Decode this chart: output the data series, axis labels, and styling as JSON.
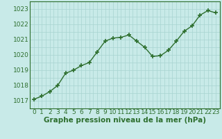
{
  "x": [
    0,
    1,
    2,
    3,
    4,
    5,
    6,
    7,
    8,
    9,
    10,
    11,
    12,
    13,
    14,
    15,
    16,
    17,
    18,
    19,
    20,
    21,
    22,
    23
  ],
  "y": [
    1017.1,
    1017.3,
    1017.6,
    1018.0,
    1018.8,
    1019.0,
    1019.3,
    1019.5,
    1020.2,
    1020.9,
    1021.1,
    1021.15,
    1021.3,
    1020.9,
    1020.5,
    1019.9,
    1019.95,
    1020.3,
    1020.9,
    1021.55,
    1021.9,
    1022.6,
    1022.9,
    1022.75
  ],
  "line_color": "#2d6e2d",
  "marker": "+",
  "marker_size": 5,
  "marker_lw": 1.2,
  "bg_color": "#c8eae8",
  "grid_color": "#a8d4d0",
  "xlabel": "Graphe pression niveau de la mer (hPa)",
  "xlabel_fontsize": 7.5,
  "xtick_labels": [
    "0",
    "1",
    "2",
    "3",
    "4",
    "5",
    "6",
    "7",
    "8",
    "9",
    "10",
    "11",
    "12",
    "13",
    "14",
    "15",
    "16",
    "17",
    "18",
    "19",
    "20",
    "21",
    "22",
    "23"
  ],
  "ytick_labels": [
    "1017",
    "1018",
    "1019",
    "1020",
    "1021",
    "1022",
    "1023"
  ],
  "ytick_values": [
    1017,
    1018,
    1019,
    1020,
    1021,
    1022,
    1023
  ],
  "ylim": [
    1016.6,
    1023.4
  ],
  "xlim": [
    -0.5,
    23.5
  ],
  "tick_fontsize": 6.5,
  "line_width": 1.0
}
